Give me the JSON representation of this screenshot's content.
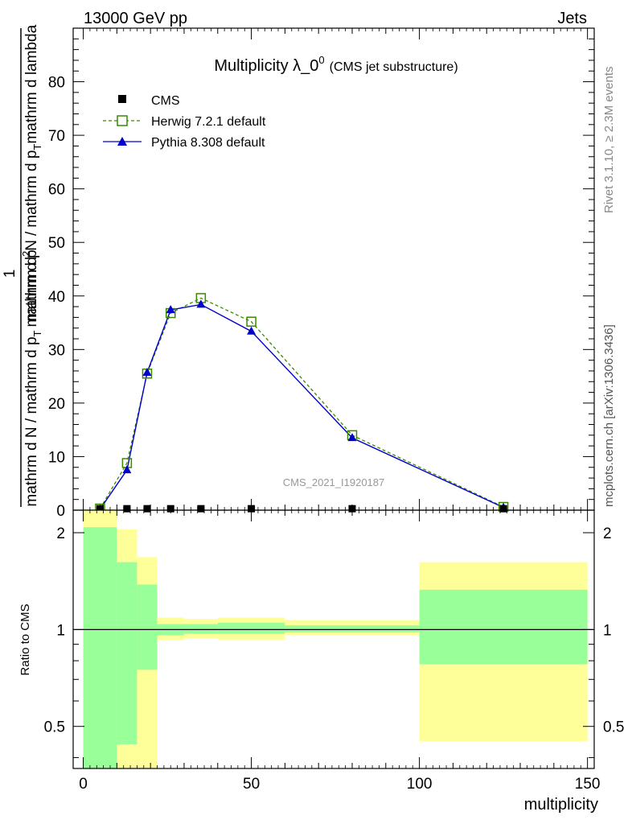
{
  "header": {
    "left": "13000 GeV pp",
    "right": "Jets"
  },
  "side_labels": {
    "rivet": "Rivet 3.1.10, ≥ 2.3M events",
    "mcplots": "mcplots.cern.ch [arXiv:1306.3436]"
  },
  "watermark": "CMS_2021_I1920187",
  "chart_data": {
    "type": "line",
    "title": "Multiplicity λ_0",
    "title_sup": "0",
    "subtitle": "(CMS jet substructure)",
    "xlabel": "multiplicity",
    "ylabel_numerator": "1",
    "ylabel_denominator": "mathrm d N / mathrm d p",
    "ylabel_denominator_sub": "T",
    "ylabel_denominator_tail": "mathrm d p",
    "ylabel_numerator_top": "mathrm d",
    "ylabel_numerator_sup": "2",
    "ylabel_numerator_N": "N",
    "ylabel_numerator_tail": "mathrm d p",
    "ylabel_numerator_tail_sub": "T",
    "ylabel_numerator_end": "mathrm d lambda",
    "xlim": [
      -3,
      152
    ],
    "ylim": [
      0,
      90
    ],
    "x_ticks": [
      0,
      50,
      100,
      150
    ],
    "y_ticks": [
      0,
      10,
      20,
      30,
      40,
      50,
      60,
      70,
      80
    ],
    "legend_position": "top-left",
    "series": [
      {
        "name": "CMS",
        "color": "#000000",
        "marker": "square",
        "x": [
          5,
          13,
          19,
          26,
          35,
          50,
          80,
          125
        ],
        "y": [
          0.2,
          0.2,
          0.2,
          0.2,
          0.2,
          0.2,
          0.2,
          0.2
        ]
      },
      {
        "name": "Herwig 7.2.1 default",
        "color": "#3a8a00",
        "marker": "open-square",
        "dashed": true,
        "x": [
          5,
          13,
          19,
          26,
          35,
          50,
          80,
          125
        ],
        "y": [
          0.3,
          8.8,
          25.5,
          36.8,
          39.6,
          35.2,
          14.0,
          0.6
        ]
      },
      {
        "name": "Pythia 8.308 default",
        "color": "#0000cc",
        "marker": "triangle",
        "x": [
          5,
          13,
          19,
          26,
          35,
          50,
          80,
          125
        ],
        "y": [
          0.2,
          7.5,
          25.7,
          37.4,
          38.4,
          33.4,
          13.5,
          0.5
        ]
      }
    ],
    "ratio": {
      "ylabel": "Ratio to CMS",
      "ylim": [
        0.37,
        2.35
      ],
      "y_ticks": [
        0.5,
        1,
        2
      ],
      "y_tick_labels": [
        "0.5",
        "1",
        "2"
      ],
      "bands": [
        {
          "x0": 0,
          "x1": 10,
          "green": [
            0.3,
            2.08
          ],
          "yellow": [
            0.3,
            2.4
          ]
        },
        {
          "x0": 10,
          "x1": 16,
          "green": [
            0.44,
            1.62
          ],
          "yellow": [
            0.3,
            2.05
          ]
        },
        {
          "x0": 16,
          "x1": 22,
          "green": [
            0.75,
            1.38
          ],
          "yellow": [
            0.3,
            1.68
          ]
        },
        {
          "x0": 22,
          "x1": 30,
          "green": [
            0.96,
            1.04
          ],
          "yellow": [
            0.93,
            1.09
          ]
        },
        {
          "x0": 30,
          "x1": 40,
          "green": [
            0.97,
            1.04
          ],
          "yellow": [
            0.94,
            1.08
          ]
        },
        {
          "x0": 40,
          "x1": 60,
          "green": [
            0.97,
            1.05
          ],
          "yellow": [
            0.93,
            1.09
          ]
        },
        {
          "x0": 60,
          "x1": 100,
          "green": [
            0.98,
            1.03
          ],
          "yellow": [
            0.96,
            1.07
          ]
        },
        {
          "x0": 100,
          "x1": 150,
          "green": [
            0.78,
            1.33
          ],
          "yellow": [
            0.45,
            1.62
          ]
        }
      ]
    }
  }
}
